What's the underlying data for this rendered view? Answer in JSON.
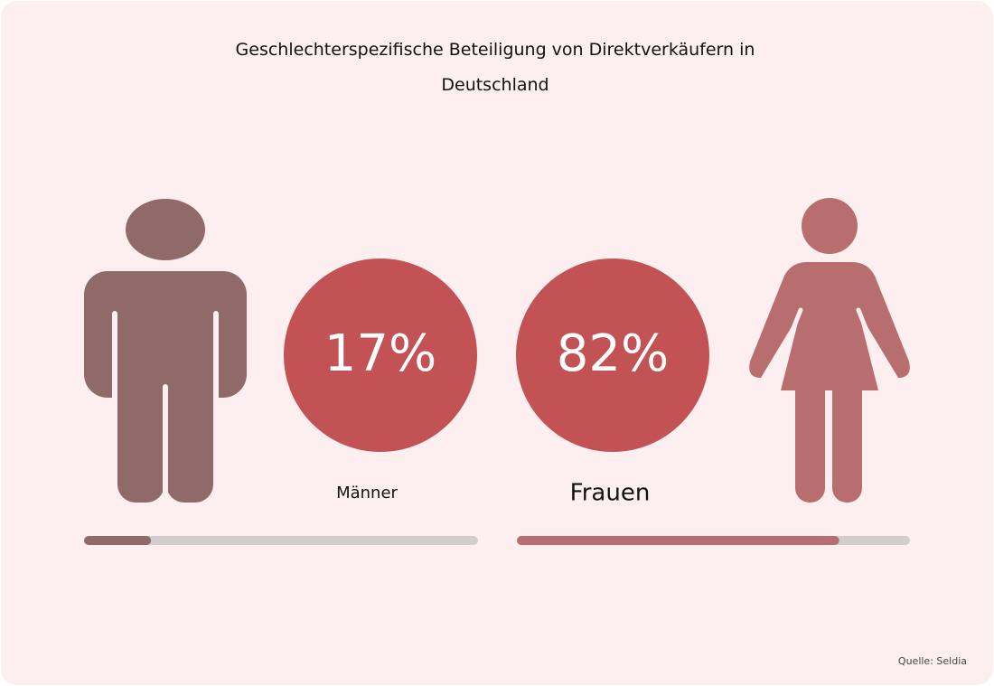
{
  "chart_data": {
    "type": "progress",
    "title": "Geschlechterspezifische Beteiligung von Direktverkäufern in Deutschland",
    "categories": [
      "Männer",
      "Frauen"
    ],
    "values": [
      17,
      82
    ],
    "value_labels": [
      "17%",
      "82%"
    ],
    "colors": [
      "#8f6a68",
      "#b86e6e"
    ],
    "circle_color": "#c25253",
    "track_color": "#d3cdcd",
    "xlim": [
      0,
      100
    ],
    "source": "Quelle: Seldia"
  }
}
